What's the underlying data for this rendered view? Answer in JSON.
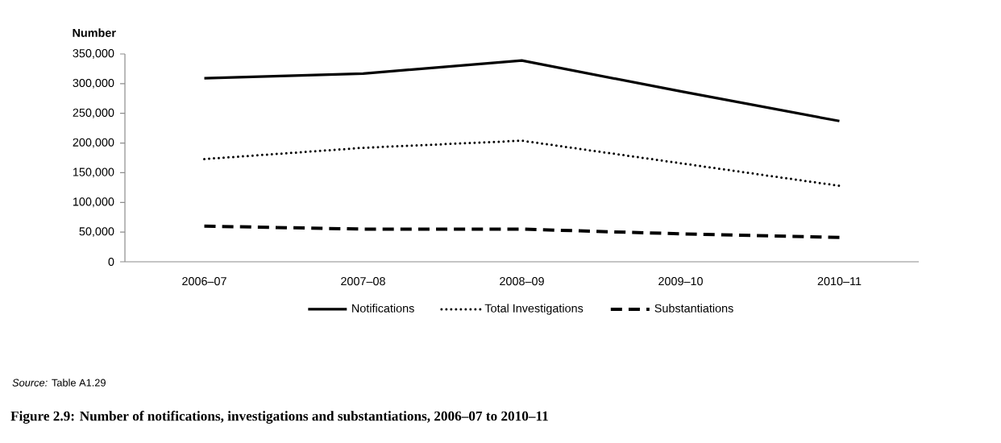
{
  "chart_data": {
    "type": "line",
    "title": "Figure 2.9: Number of notifications, investigations and substantiations, 2006–07 to 2010–11",
    "ylabel": "Number",
    "categories": [
      "2006–07",
      "2007–08",
      "2008–09",
      "2009–10",
      "2010–11"
    ],
    "series": [
      {
        "name": "Notifications",
        "color": "#000000",
        "line_style": "solid",
        "values": [
          309000,
          317000,
          339000,
          287000,
          237000
        ]
      },
      {
        "name": "Total Investigations",
        "color": "#000000",
        "line_style": "dotted",
        "values": [
          173000,
          192000,
          204000,
          166000,
          128000
        ]
      },
      {
        "name": "Substantiations",
        "color": "#000000",
        "line_style": "dashed",
        "values": [
          60000,
          55000,
          55000,
          47000,
          41000
        ]
      }
    ],
    "ylim": [
      0,
      350000
    ],
    "yticks": [
      {
        "value": 0,
        "label": "0"
      },
      {
        "value": 50000,
        "label": "50,000"
      },
      {
        "value": 100000,
        "label": "100,000"
      },
      {
        "value": 150000,
        "label": "150,000"
      },
      {
        "value": 200000,
        "label": "200,000"
      },
      {
        "value": 250000,
        "label": "250,000"
      },
      {
        "value": 300000,
        "label": "300,000"
      },
      {
        "value": 350000,
        "label": "350,000"
      }
    ],
    "legend": "bottom",
    "annotations": [
      "*Source:* Table A1.29"
    ]
  }
}
